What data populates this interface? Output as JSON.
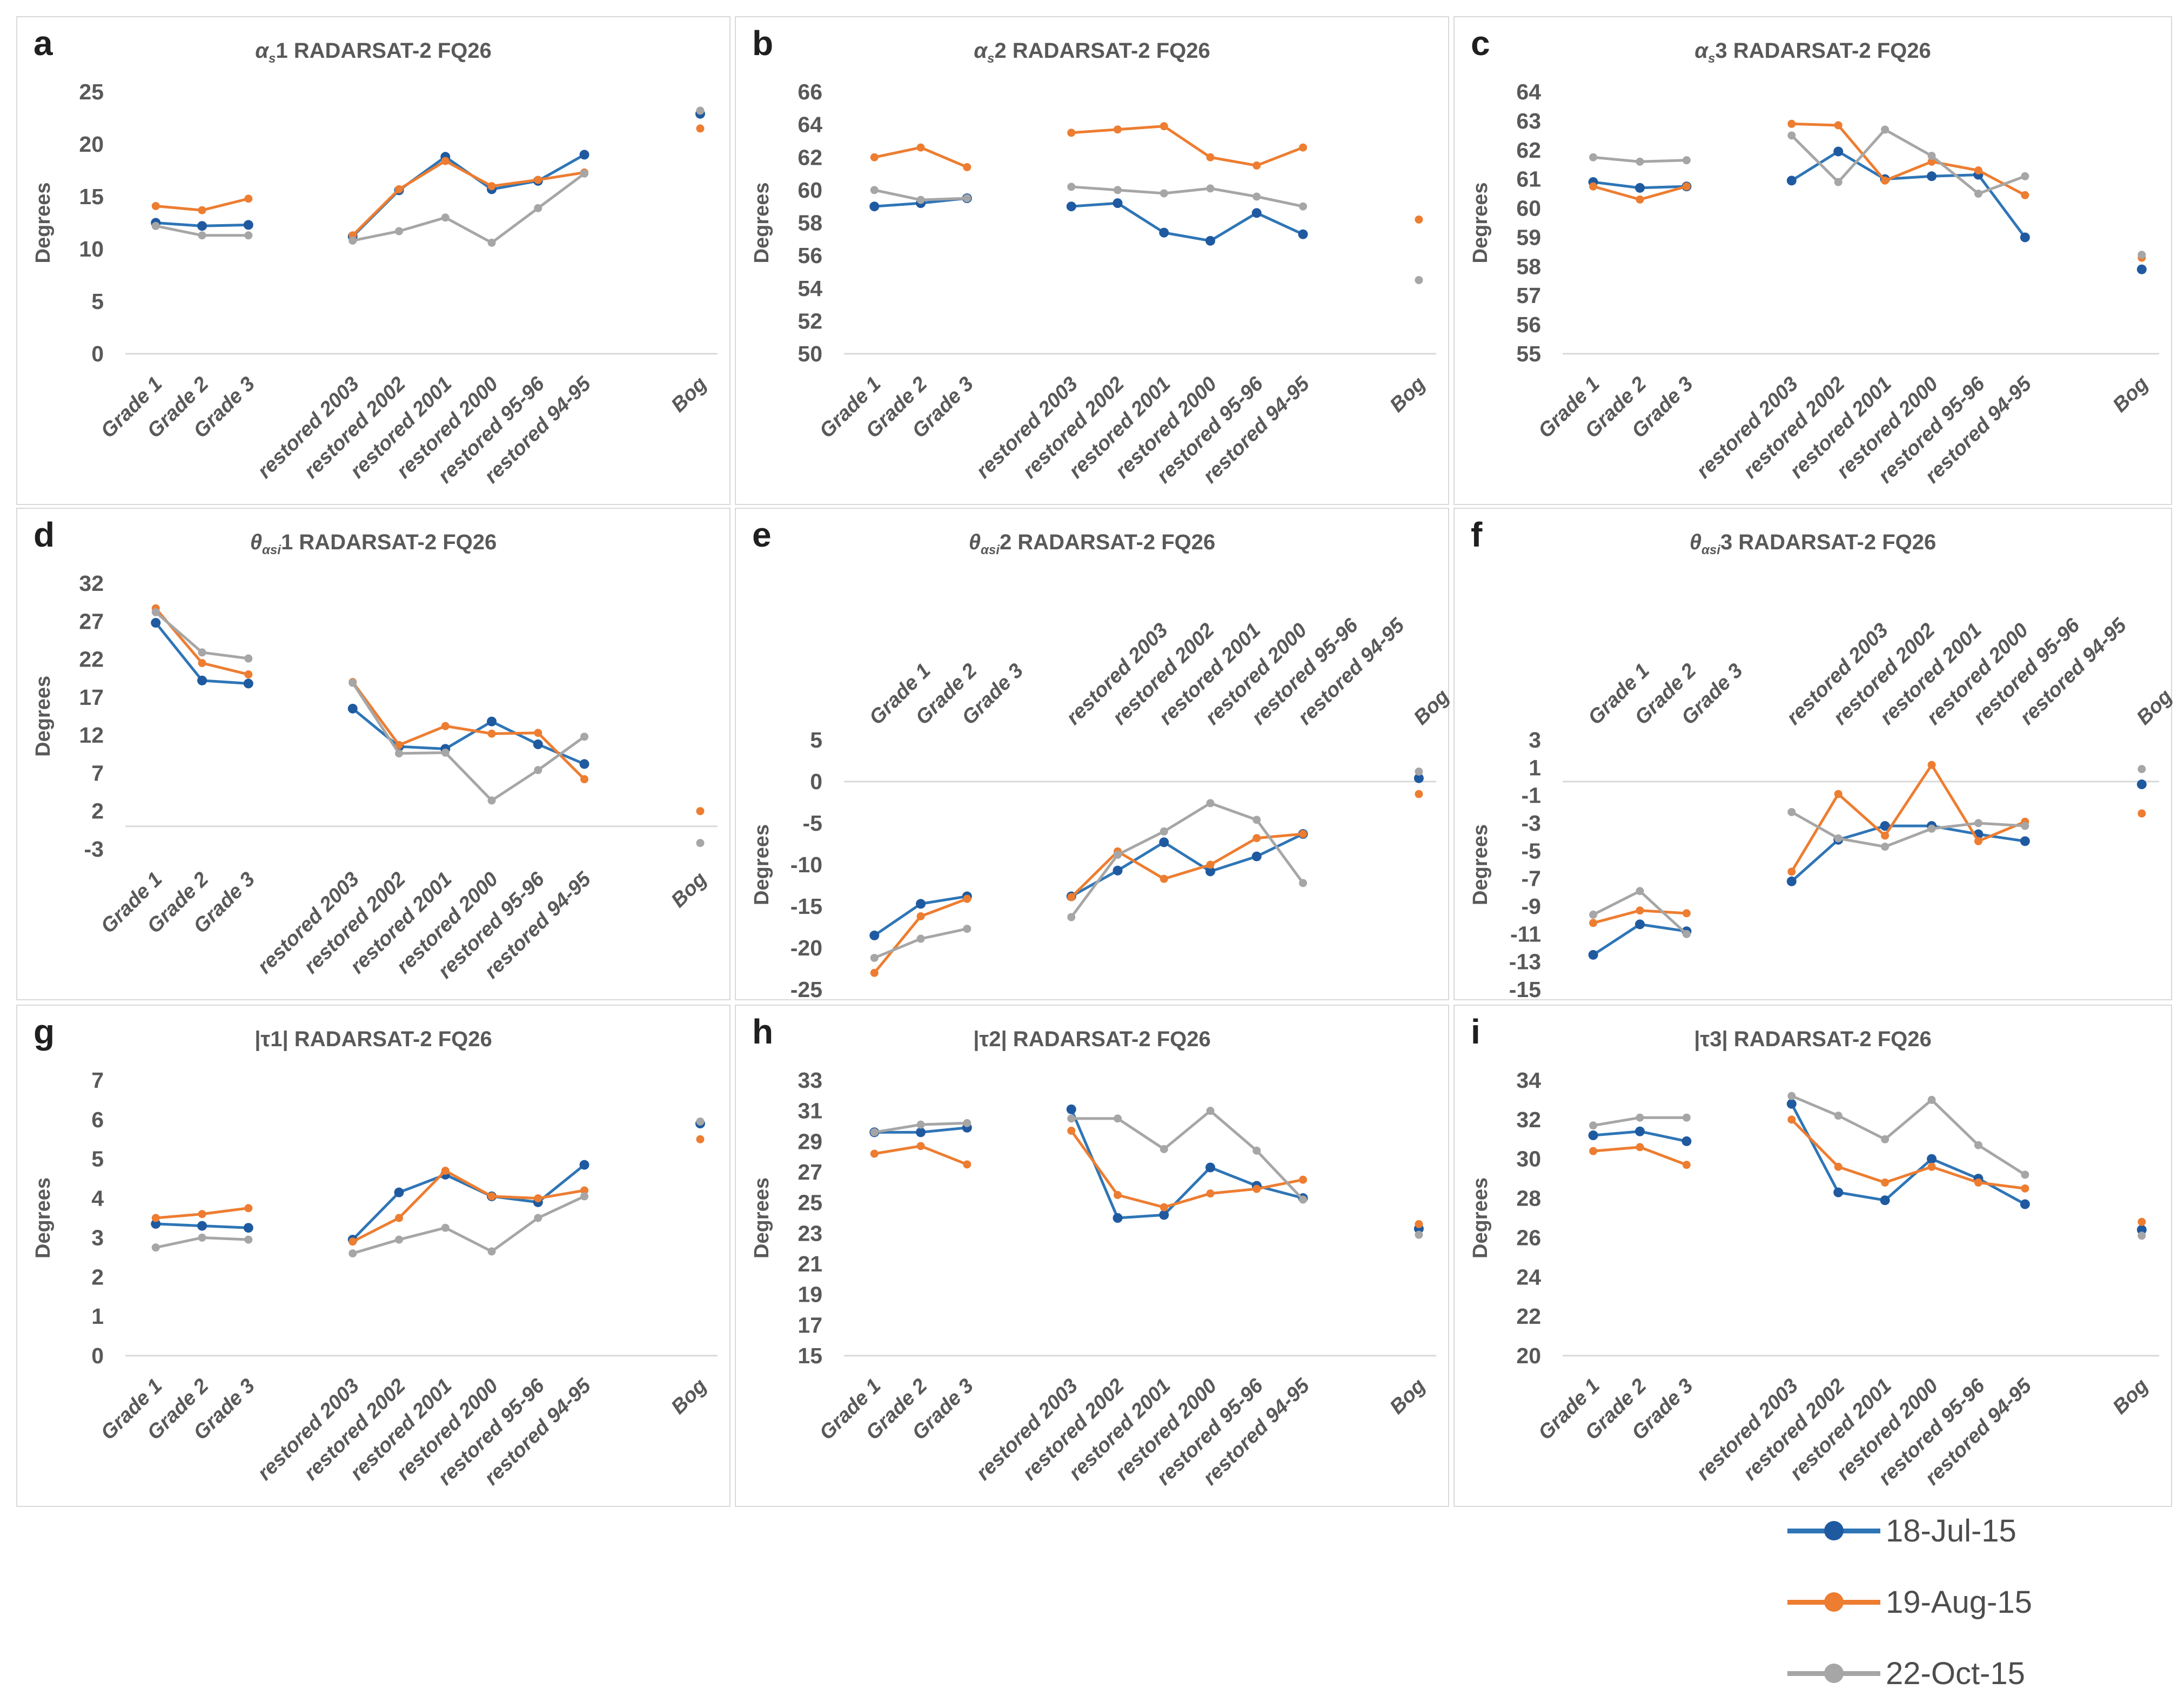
{
  "legend": {
    "items": [
      {
        "label": "18-Jul-15",
        "color": "#2E75B6",
        "marker_color": "#1F5AA0"
      },
      {
        "label": "19-Aug-15",
        "color": "#ED7D31",
        "marker_color": "#ED7D31"
      },
      {
        "label": "22-Oct-15",
        "color": "#A6A6A6",
        "marker_color": "#A6A6A6"
      }
    ]
  },
  "chart_data": {
    "type": "line",
    "ylabel": "Degrees",
    "categories": [
      "Grade 1",
      "Grade 2",
      "Grade 3",
      "restored 2003",
      "restored 2002",
      "restored 2001",
      "restored 2000",
      "restored 95-96",
      "restored 94-95",
      "Bog"
    ],
    "series_names": [
      "18-Jul-15",
      "19-Aug-15",
      "22-Oct-15"
    ],
    "series_colors": [
      "#2E75B6",
      "#ED7D31",
      "#A6A6A6"
    ],
    "group_segments": [
      [
        0,
        1,
        2
      ],
      [
        3,
        4,
        5,
        6,
        7,
        8
      ],
      [
        9
      ]
    ],
    "legend_position": "bottom-right",
    "grid": "axis-line-only",
    "panels": [
      {
        "letter": "a",
        "title_sym": "α",
        "title_sub": "s",
        "title_rest": "1 RADARSAT-2 FQ26",
        "ylabel": "Degrees",
        "ylim": [
          0,
          25
        ],
        "ystep": 5,
        "xlabels": "bottom",
        "series": [
          [
            12.5,
            12.2,
            12.3,
            11.2,
            15.6,
            18.8,
            15.7,
            16.5,
            19.0,
            22.9
          ],
          [
            14.1,
            13.7,
            14.8,
            11.3,
            15.7,
            18.4,
            16.0,
            16.6,
            17.3,
            21.5
          ],
          [
            12.2,
            11.3,
            11.3,
            10.8,
            11.7,
            13.0,
            10.6,
            13.9,
            17.2,
            23.2
          ]
        ]
      },
      {
        "letter": "b",
        "title_sym": "α",
        "title_sub": "s",
        "title_rest": "2  RADARSAT-2 FQ26",
        "ylabel": "Degrees",
        "ylim": [
          50,
          66
        ],
        "ystep": 2,
        "xlabels": "bottom",
        "series": [
          [
            59.0,
            59.2,
            59.5,
            59.0,
            59.2,
            57.4,
            56.9,
            58.6,
            57.3,
            null
          ],
          [
            62.0,
            62.6,
            61.4,
            63.5,
            63.7,
            63.9,
            62.0,
            61.5,
            62.6,
            58.2
          ],
          [
            60.0,
            59.4,
            59.5,
            60.2,
            60.0,
            59.8,
            60.1,
            59.6,
            59.0,
            54.5
          ]
        ]
      },
      {
        "letter": "c",
        "title_sym": "α",
        "title_sub": "s",
        "title_rest": "3  RADARSAT-2 FQ26",
        "ylabel": "Degrees",
        "ylim": [
          55,
          64
        ],
        "ystep": 1,
        "xlabels": "bottom",
        "series": [
          [
            60.9,
            60.7,
            60.75,
            60.95,
            61.95,
            61.0,
            61.1,
            61.15,
            59.0,
            57.9
          ],
          [
            60.75,
            60.3,
            60.75,
            62.9,
            62.85,
            60.95,
            61.6,
            61.3,
            60.45,
            58.3
          ],
          [
            61.75,
            61.6,
            61.65,
            62.5,
            60.9,
            62.7,
            61.8,
            60.5,
            61.1,
            58.4
          ]
        ]
      },
      {
        "letter": "d",
        "title_sym": "θ",
        "title_sub": "αsi",
        "title_rest": "1 RADARSAT-2 FQ26",
        "ylabel": "Degrees",
        "ylim": [
          -3,
          32
        ],
        "ystep": 5,
        "xlabels": "bottom",
        "series": [
          [
            26.8,
            19.2,
            18.8,
            15.5,
            10.5,
            10.2,
            13.8,
            10.8,
            8.2,
            null
          ],
          [
            28.7,
            21.5,
            20.0,
            19.0,
            10.7,
            13.2,
            12.2,
            12.3,
            6.2,
            2.0
          ],
          [
            28.2,
            22.9,
            22.1,
            18.9,
            9.6,
            9.7,
            3.4,
            7.4,
            11.8,
            -2.2
          ]
        ]
      },
      {
        "letter": "e",
        "title_sym": "θ",
        "title_sub": "αsi",
        "title_rest": "2 RADARSAT-2 FQ26",
        "ylabel": "Degrees",
        "ylim": [
          -25,
          5
        ],
        "ystep": 5,
        "xlabels": "top",
        "series": [
          [
            -18.5,
            -14.7,
            -13.8,
            -13.8,
            -10.7,
            -7.3,
            -10.8,
            -9.0,
            -6.3,
            0.4
          ],
          [
            -23.0,
            -16.2,
            -14.1,
            -13.9,
            -8.4,
            -11.7,
            -10.0,
            -6.8,
            -6.3,
            -1.5
          ],
          [
            -21.2,
            -18.9,
            -17.7,
            -16.3,
            -8.8,
            -6.0,
            -2.6,
            -4.6,
            -12.2,
            1.2
          ]
        ]
      },
      {
        "letter": "f",
        "title_sym": "θ",
        "title_sub": "αsi",
        "title_rest": "3 RADARSAT-2 FQ26",
        "ylabel": "Degrees",
        "ylim": [
          -15,
          3
        ],
        "ystep": 2,
        "xlabels": "top",
        "series": [
          [
            -12.5,
            -10.3,
            -10.8,
            -7.2,
            -4.2,
            -3.2,
            -3.2,
            -3.8,
            -4.3,
            -0.2
          ],
          [
            -10.2,
            -9.3,
            -9.5,
            -6.5,
            -0.9,
            -3.9,
            1.2,
            -4.3,
            -2.9,
            -2.3
          ],
          [
            -9.6,
            -7.9,
            -11.0,
            -2.2,
            -4.1,
            -4.7,
            -3.4,
            -3.0,
            -3.2,
            0.9
          ]
        ]
      },
      {
        "letter": "g",
        "title_sym": "|τ1|",
        "title_sub": "",
        "title_rest": " RADARSAT-2 FQ26",
        "ylabel": "Degrees",
        "ylim": [
          0,
          7
        ],
        "ystep": 1,
        "xlabels": "bottom",
        "series": [
          [
            3.35,
            3.3,
            3.25,
            2.95,
            4.15,
            4.6,
            4.05,
            3.9,
            4.85,
            5.9
          ],
          [
            3.5,
            3.6,
            3.75,
            2.9,
            3.5,
            4.7,
            4.05,
            4.0,
            4.2,
            5.5
          ],
          [
            2.75,
            3.0,
            2.95,
            2.6,
            2.95,
            3.25,
            2.65,
            3.5,
            4.05,
            5.95
          ]
        ]
      },
      {
        "letter": "h",
        "title_sym": "|τ2|",
        "title_sub": "",
        "title_rest": " RADARSAT-2 FQ26",
        "ylabel": "Degrees",
        "ylim": [
          15,
          33
        ],
        "ystep": 2,
        "xlabels": "bottom",
        "series": [
          [
            29.6,
            29.6,
            29.9,
            31.1,
            24.0,
            24.2,
            27.3,
            26.1,
            25.3,
            23.3
          ],
          [
            28.2,
            28.7,
            27.5,
            29.7,
            25.5,
            24.7,
            25.6,
            25.9,
            26.5,
            23.6
          ],
          [
            29.6,
            30.1,
            30.2,
            30.5,
            30.5,
            28.5,
            31.0,
            28.4,
            25.2,
            22.9
          ]
        ]
      },
      {
        "letter": "i",
        "title_sym": "|τ3|",
        "title_sub": "",
        "title_rest": " RADARSAT-2 FQ26",
        "ylabel": "Degrees",
        "ylim": [
          20,
          34
        ],
        "ystep": 2,
        "xlabels": "bottom",
        "series": [
          [
            31.2,
            31.4,
            30.9,
            32.8,
            28.3,
            27.9,
            30.0,
            29.0,
            27.7,
            26.4
          ],
          [
            30.4,
            30.6,
            29.7,
            32.0,
            29.6,
            28.8,
            29.6,
            28.8,
            28.5,
            26.8
          ],
          [
            31.7,
            32.1,
            32.1,
            33.2,
            32.2,
            31.0,
            33.0,
            30.7,
            29.2,
            26.1
          ]
        ]
      }
    ]
  }
}
